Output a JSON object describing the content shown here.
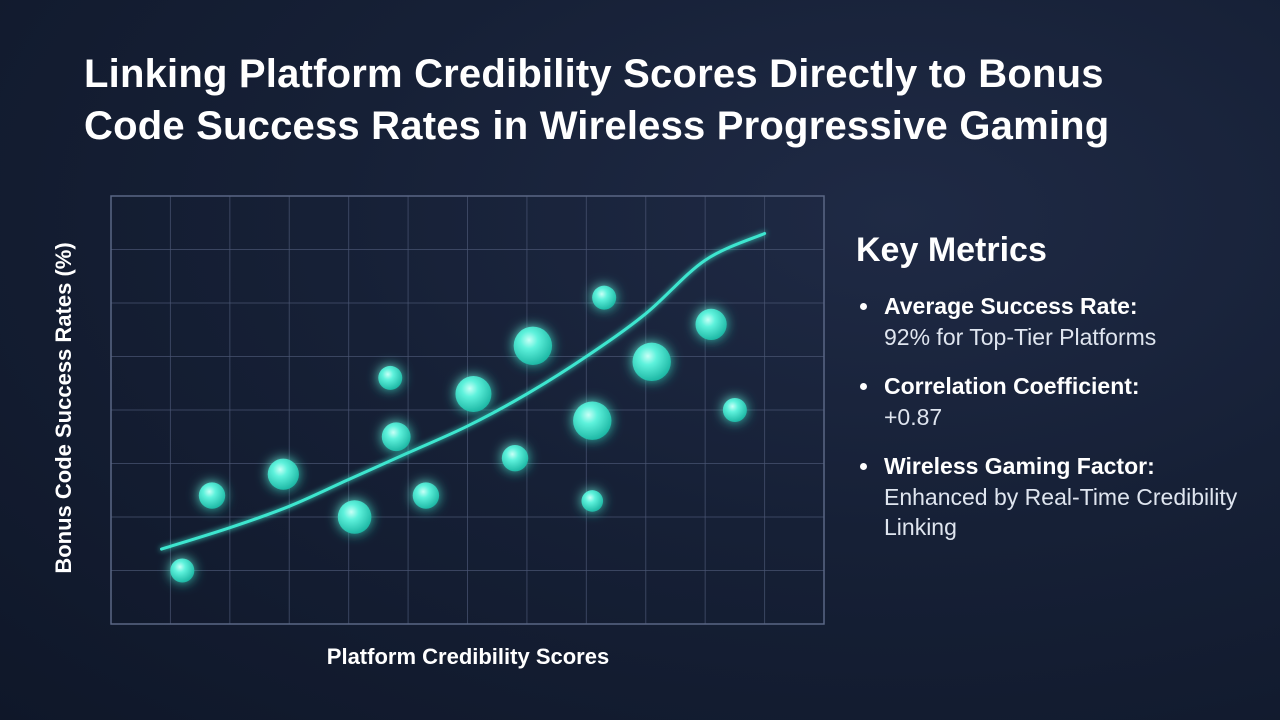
{
  "title": "Linking Platform Credibility Scores Directly to Bonus Code Success Rates in Wireless Progressive Gaming",
  "colors": {
    "accent": "#3ee6cf",
    "background": "#162036",
    "grid": "#4a5673"
  },
  "chart_data": {
    "type": "scatter",
    "title": "",
    "xlabel": "Platform Credibility Scores",
    "ylabel": "Bonus Code Success Rates (%)",
    "xlim": [
      0,
      12
    ],
    "ylim": [
      0,
      8
    ],
    "grid": true,
    "legend": "none",
    "points": [
      {
        "x": 1.2,
        "y": 1.0,
        "size": 1.0
      },
      {
        "x": 1.7,
        "y": 2.4,
        "size": 1.1
      },
      {
        "x": 2.9,
        "y": 2.8,
        "size": 1.3
      },
      {
        "x": 4.1,
        "y": 2.0,
        "size": 1.4
      },
      {
        "x": 4.7,
        "y": 4.6,
        "size": 1.0
      },
      {
        "x": 4.8,
        "y": 3.5,
        "size": 1.2
      },
      {
        "x": 5.3,
        "y": 2.4,
        "size": 1.1
      },
      {
        "x": 6.1,
        "y": 4.3,
        "size": 1.5
      },
      {
        "x": 6.8,
        "y": 3.1,
        "size": 1.1
      },
      {
        "x": 7.1,
        "y": 5.2,
        "size": 1.6
      },
      {
        "x": 8.1,
        "y": 3.8,
        "size": 1.6
      },
      {
        "x": 8.1,
        "y": 2.3,
        "size": 0.9
      },
      {
        "x": 8.3,
        "y": 6.1,
        "size": 1.0
      },
      {
        "x": 9.1,
        "y": 4.9,
        "size": 1.6
      },
      {
        "x": 10.1,
        "y": 5.6,
        "size": 1.3
      },
      {
        "x": 10.5,
        "y": 4.0,
        "size": 1.0
      }
    ],
    "trendline": [
      [
        0.85,
        1.4
      ],
      [
        2.0,
        1.8
      ],
      [
        3.0,
        2.2
      ],
      [
        4.0,
        2.7
      ],
      [
        5.0,
        3.2
      ],
      [
        6.0,
        3.7
      ],
      [
        7.0,
        4.3
      ],
      [
        8.0,
        5.0
      ],
      [
        9.0,
        5.8
      ],
      [
        10.0,
        6.8
      ],
      [
        11.0,
        7.3
      ]
    ]
  },
  "metrics": {
    "heading": "Key Metrics",
    "items": [
      {
        "label": "Average Success Rate:",
        "value": "92% for Top-Tier Platforms"
      },
      {
        "label": "Correlation Coefficient:",
        "value": "+0.87"
      },
      {
        "label": "Wireless Gaming Factor:",
        "value": "Enhanced by Real-Time Credibility Linking"
      }
    ]
  }
}
